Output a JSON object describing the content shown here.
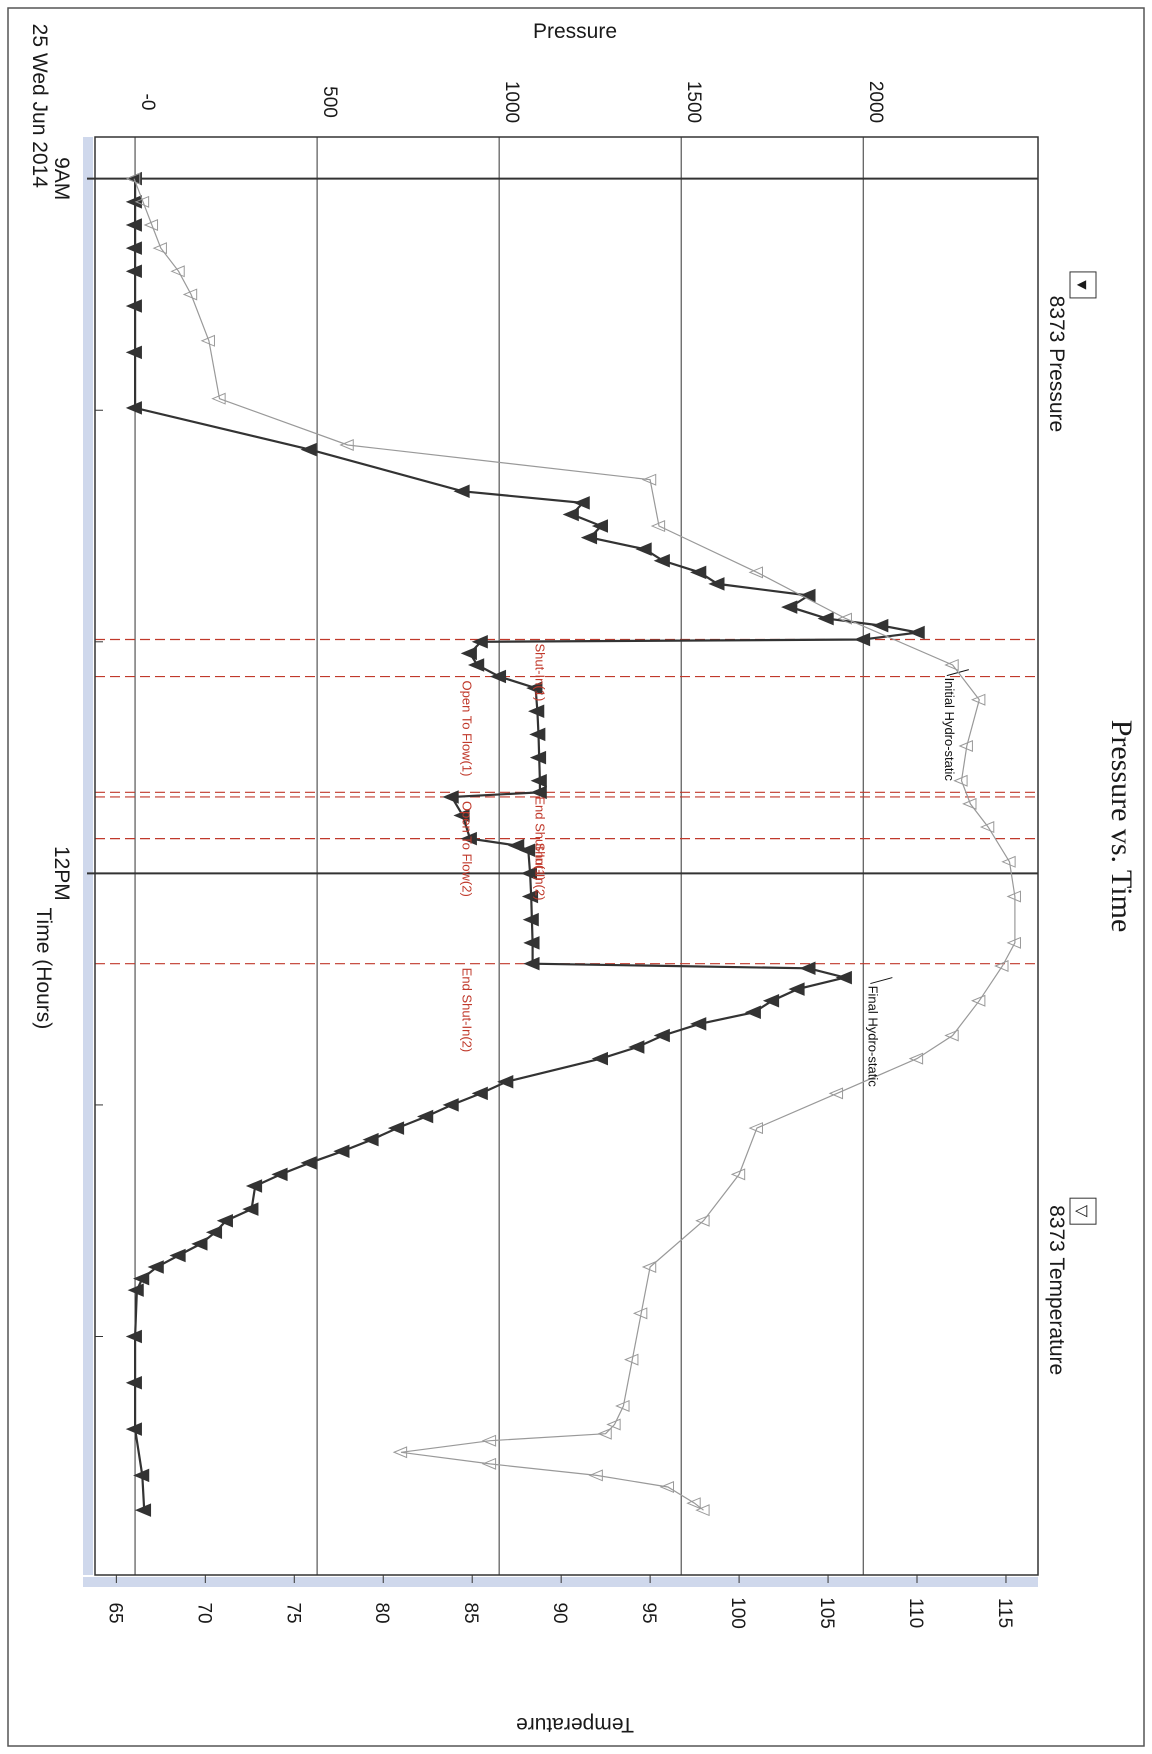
{
  "chart_data": {
    "type": "line",
    "title": "Pressure vs. Time",
    "xlabel": "Time (Hours)",
    "ylabel_left": "Pressure",
    "ylabel_right": "Temperature",
    "x_tick_labels": [
      {
        "t": 9.0,
        "label": "9AM",
        "sub": "25 Wed Jun 2014"
      },
      {
        "t": 12.0,
        "label": "12PM",
        "sub": ""
      }
    ],
    "minor_x_ticks": [
      10.0,
      11.0,
      13.0,
      14.0
    ],
    "xlim": [
      8.82,
      15.03
    ],
    "pressure_ticks": [
      0,
      500,
      1000,
      1500,
      2000
    ],
    "pressure_tick_labels": [
      "-0",
      "500",
      "1000",
      "1500",
      "2000"
    ],
    "ylim_pressure": [
      -110,
      2480
    ],
    "temperature_ticks": [
      65,
      70,
      75,
      80,
      85,
      90,
      95,
      100,
      105,
      110,
      115
    ],
    "ylim_temperature": [
      63.8,
      116.8
    ],
    "grid": true,
    "legend": [
      {
        "name": "8373 Pressure",
        "symbol": "▼",
        "position": "top-left"
      },
      {
        "name": "8373 Temperature",
        "symbol": "▽",
        "position": "top-right"
      }
    ],
    "events": [
      {
        "t": 10.99,
        "label": "Shut-In(1)"
      },
      {
        "t": 11.15,
        "label": "Open To Flow(1)"
      },
      {
        "t": 11.65,
        "label": "End Shut-In(1)"
      },
      {
        "t": 11.67,
        "label": "Open To Flow(2)"
      },
      {
        "t": 11.85,
        "label": "Shut-In(2)"
      },
      {
        "t": 12.39,
        "label": "End Shut-In(2)"
      }
    ],
    "annotations": [
      {
        "t": 11.12,
        "p": 2290,
        "label": "Initial Hydro-static"
      },
      {
        "t": 12.45,
        "p": 2080,
        "label": "Final Hydro-static"
      }
    ],
    "series": [
      {
        "name": "8373 Pressure",
        "axis": "pressure",
        "color": "#333333",
        "points": [
          [
            9.0,
            0
          ],
          [
            9.1,
            0
          ],
          [
            9.2,
            0
          ],
          [
            9.3,
            0
          ],
          [
            9.4,
            0
          ],
          [
            9.55,
            0
          ],
          [
            9.75,
            0
          ],
          [
            9.99,
            0
          ],
          [
            10.17,
            480
          ],
          [
            10.35,
            900
          ],
          [
            10.4,
            1230
          ],
          [
            10.45,
            1200
          ],
          [
            10.5,
            1280
          ],
          [
            10.55,
            1250
          ],
          [
            10.6,
            1400
          ],
          [
            10.65,
            1450
          ],
          [
            10.7,
            1550
          ],
          [
            10.75,
            1600
          ],
          [
            10.8,
            1850
          ],
          [
            10.85,
            1800
          ],
          [
            10.9,
            1900
          ],
          [
            10.93,
            2050
          ],
          [
            10.96,
            2150
          ],
          [
            10.99,
            2000
          ],
          [
            11.0,
            950
          ],
          [
            11.05,
            920
          ],
          [
            11.1,
            940
          ],
          [
            11.15,
            1000
          ],
          [
            11.2,
            1100
          ],
          [
            11.3,
            1105
          ],
          [
            11.4,
            1108
          ],
          [
            11.5,
            1110
          ],
          [
            11.6,
            1112
          ],
          [
            11.65,
            1112
          ],
          [
            11.67,
            870
          ],
          [
            11.75,
            900
          ],
          [
            11.85,
            920
          ],
          [
            11.88,
            1050
          ],
          [
            11.9,
            1080
          ],
          [
            12.0,
            1085
          ],
          [
            12.1,
            1088
          ],
          [
            12.2,
            1090
          ],
          [
            12.3,
            1092
          ],
          [
            12.39,
            1092
          ],
          [
            12.41,
            1850
          ],
          [
            12.45,
            1950
          ],
          [
            12.5,
            1820
          ],
          [
            12.55,
            1750
          ],
          [
            12.6,
            1700
          ],
          [
            12.65,
            1550
          ],
          [
            12.7,
            1450
          ],
          [
            12.75,
            1380
          ],
          [
            12.8,
            1280
          ],
          [
            12.9,
            1020
          ],
          [
            12.95,
            950
          ],
          [
            13.0,
            870
          ],
          [
            13.05,
            800
          ],
          [
            13.1,
            720
          ],
          [
            13.15,
            650
          ],
          [
            13.2,
            570
          ],
          [
            13.25,
            480
          ],
          [
            13.3,
            400
          ],
          [
            13.35,
            330
          ],
          [
            13.45,
            320
          ],
          [
            13.5,
            250
          ],
          [
            13.55,
            220
          ],
          [
            13.6,
            180
          ],
          [
            13.65,
            120
          ],
          [
            13.7,
            60
          ],
          [
            13.75,
            20
          ],
          [
            13.8,
            5
          ],
          [
            14.0,
            0
          ],
          [
            14.2,
            0
          ],
          [
            14.4,
            0
          ],
          [
            14.6,
            20
          ],
          [
            14.75,
            25
          ]
        ]
      },
      {
        "name": "8373 Temperature",
        "axis": "temperature",
        "color": "#999999",
        "points": [
          [
            9.0,
            66
          ],
          [
            9.1,
            66.5
          ],
          [
            9.2,
            67
          ],
          [
            9.3,
            67.5
          ],
          [
            9.4,
            68.5
          ],
          [
            9.5,
            69.2
          ],
          [
            9.7,
            70.2
          ],
          [
            9.95,
            70.8
          ],
          [
            10.15,
            78
          ],
          [
            10.3,
            95
          ],
          [
            10.5,
            95.5
          ],
          [
            10.7,
            101
          ],
          [
            10.9,
            106
          ],
          [
            11.1,
            112
          ],
          [
            11.25,
            113.5
          ],
          [
            11.45,
            112.8
          ],
          [
            11.6,
            112.5
          ],
          [
            11.7,
            113
          ],
          [
            11.8,
            114
          ],
          [
            11.95,
            115.2
          ],
          [
            12.1,
            115.5
          ],
          [
            12.3,
            115.5
          ],
          [
            12.4,
            114.8
          ],
          [
            12.55,
            113.5
          ],
          [
            12.7,
            112
          ],
          [
            12.8,
            110
          ],
          [
            12.95,
            105.5
          ],
          [
            13.1,
            101
          ],
          [
            13.3,
            100
          ],
          [
            13.5,
            98
          ],
          [
            13.7,
            95
          ],
          [
            13.9,
            94.5
          ],
          [
            14.1,
            94
          ],
          [
            14.3,
            93.5
          ],
          [
            14.38,
            93
          ],
          [
            14.42,
            92.5
          ],
          [
            14.45,
            86
          ],
          [
            14.5,
            81
          ],
          [
            14.55,
            86
          ],
          [
            14.6,
            92
          ],
          [
            14.65,
            96
          ],
          [
            14.72,
            97.5
          ],
          [
            14.75,
            98
          ]
        ]
      }
    ]
  }
}
